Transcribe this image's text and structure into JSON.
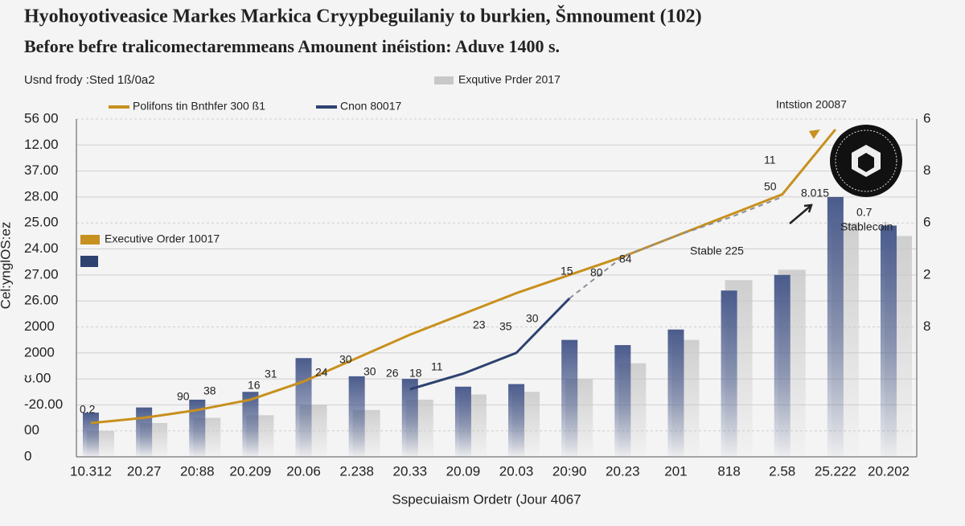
{
  "chart_data": {
    "type": "bar-line",
    "title": "Hyohoyotiveasice Markes Markica Cryypbeguilaniy to burkien, Šmnoument (102)",
    "subtitle": "Before befre tralicomectaremmeans Amounent inéistion: Aduve 1400 s.",
    "note": "Usnd frody :Sted 1ß/0a2",
    "x_label": "Sspecuiaism Ordetr (Jour 4067",
    "y_label": "Cel:ynglOS:ez",
    "categories": [
      "10.312",
      "20.27",
      "20:88",
      "20.209",
      "20.06",
      "2.238",
      "20.33",
      "20.09",
      "20.03",
      "20:90",
      "20.23",
      "201",
      "8​18",
      "2.58",
      "25.222",
      "20.202"
    ],
    "ylim": [
      0,
      13
    ],
    "yticks": [
      {
        "value": 0,
        "label": "0"
      },
      {
        "value": 1,
        "label": "00"
      },
      {
        "value": 2,
        "label": "-20.00"
      },
      {
        "value": 3,
        "label": "ʊ.00"
      },
      {
        "value": 4,
        "label": "2000"
      },
      {
        "value": 5,
        "label": "2000"
      },
      {
        "value": 6,
        "label": "26.00"
      },
      {
        "value": 7,
        "label": "27.00"
      },
      {
        "value": 8,
        "label": "24.00"
      },
      {
        "value": 9,
        "label": "25.00"
      },
      {
        "value": 10,
        "label": "28.00"
      },
      {
        "value": 11,
        "label": "37.00"
      },
      {
        "value": 12,
        "label": "12.00"
      },
      {
        "value": 13,
        "label": "56 00"
      }
    ],
    "y2lim": [
      -2.5,
      4
    ],
    "y2ticks": [
      {
        "value": 4,
        "label": "6"
      },
      {
        "value": 3,
        "label": "8"
      },
      {
        "value": 2,
        "label": "6"
      },
      {
        "value": 1,
        "label": "2"
      },
      {
        "value": 0,
        "label": "8"
      }
    ],
    "grid": true,
    "series": [
      {
        "name": "Exqutive Prder 2017",
        "type": "bar",
        "color": "#c8c8c8",
        "values": [
          1.0,
          1.3,
          1.5,
          1.6,
          2.0,
          1.8,
          2.2,
          2.4,
          2.5,
          3.0,
          3.6,
          4.5,
          6.8,
          7.2,
          9.0,
          8.5
        ]
      },
      {
        "type": "bar",
        "color": "#4a5b8c",
        "values": [
          1.7,
          1.9,
          2.2,
          2.5,
          3.8,
          3.1,
          3.0,
          2.7,
          2.8,
          4.5,
          4.3,
          4.9,
          6.4,
          7.0,
          10.0,
          8.9
        ]
      },
      {
        "name": "Polifons tin Bnthfer 300 ß1",
        "type": "line",
        "color": "#c8901e",
        "values": [
          1.3,
          1.5,
          1.8,
          2.2,
          2.9,
          3.8,
          4.7,
          5.5,
          6.3,
          7.0,
          7.7,
          8.5,
          9.3,
          10.1,
          12.6,
          null
        ]
      },
      {
        "name": "Cnon 80017",
        "type": "line",
        "color": "#2e4270",
        "values": [
          null,
          null,
          null,
          null,
          null,
          null,
          2.6,
          3.2,
          4.0,
          6.1,
          null,
          null,
          null,
          null,
          null,
          null
        ]
      },
      {
        "type": "line",
        "color": "#8a8f99",
        "dashed": true,
        "values": [
          null,
          null,
          null,
          null,
          null,
          null,
          null,
          null,
          null,
          6.1,
          7.7,
          8.5,
          9.2,
          10.0,
          null,
          null
        ]
      }
    ],
    "annotations": [
      "Intstion 20087",
      "Executive Order 10017",
      "Stable 225",
      "Stablecoin",
      "8.015",
      "0.7",
      "11",
      "50",
      "84",
      "80",
      "15",
      "30",
      "35",
      "23",
      "11",
      "18",
      "26",
      "30",
      "30",
      "24",
      "31",
      "16",
      "38",
      "90",
      "0.2"
    ]
  }
}
